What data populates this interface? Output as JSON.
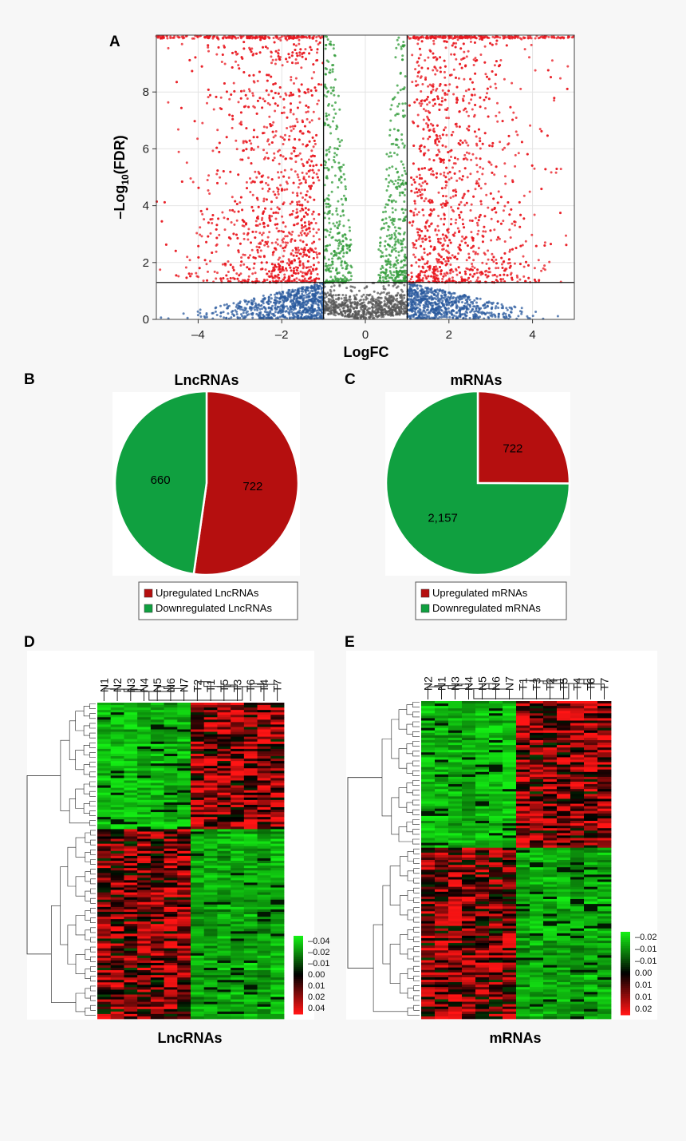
{
  "panels": {
    "a": "A",
    "b": "B",
    "c": "C",
    "d": "D",
    "e": "E"
  },
  "chart_data": [
    {
      "panel": "A",
      "type": "scatter",
      "xlabel": "LogFC",
      "ylabel_main": "–Log",
      "ylabel_sub": "10",
      "ylabel_tail": "(FDR)",
      "xlim": [
        -5,
        5
      ],
      "ylim": [
        0,
        10
      ],
      "xticks": [
        {
          "value": -4,
          "label": "–4"
        },
        {
          "value": -2,
          "label": "–2"
        },
        {
          "value": 0,
          "label": "0"
        },
        {
          "value": 2,
          "label": "2"
        },
        {
          "value": 4,
          "label": "4"
        }
      ],
      "yticks": [
        {
          "value": 0,
          "label": "0"
        },
        {
          "value": 2,
          "label": "2"
        },
        {
          "value": 4,
          "label": "4"
        },
        {
          "value": 6,
          "label": "6"
        },
        {
          "value": 8,
          "label": "8"
        }
      ],
      "thresholds": {
        "logfc": [
          -1,
          1
        ],
        "neg_log10_fdr": 1.3
      },
      "grid": true,
      "colors": {
        "significant": "#e8141c",
        "fdr_only": "#2e9a36",
        "fc_only": "#2a5a9e",
        "not_significant": "#555555"
      }
    },
    {
      "panel": "B",
      "type": "pie",
      "title": "LncRNAs",
      "slices": [
        {
          "name": "Upregulated LncRNAs",
          "value": 722,
          "label": "722",
          "color": "#b50f0f"
        },
        {
          "name": "Downregulated LncRNAs",
          "value": 660,
          "label": "660",
          "color": "#10a040"
        }
      ]
    },
    {
      "panel": "C",
      "type": "pie",
      "title": "mRNAs",
      "slices": [
        {
          "name": "Upregulated mRNAs",
          "value": 722,
          "label": "722",
          "color": "#b50f0f"
        },
        {
          "name": "Downregulated mRNAs",
          "value": 2157,
          "label": "2,157",
          "color": "#10a040"
        }
      ]
    },
    {
      "panel": "D",
      "type": "heatmap",
      "title": "LncRNAs",
      "columns": [
        "N1",
        "N2",
        "N3",
        "N4",
        "N5",
        "N6",
        "N7",
        "T2",
        "T1",
        "T5",
        "T3",
        "T6",
        "T4",
        "T7"
      ],
      "normal_columns": 7,
      "upper_cluster_fraction": 0.4,
      "colorbar": [
        "–0.04",
        "–0.02",
        "–0.01",
        "0.00",
        "0.01",
        "0.02",
        "0.04"
      ],
      "colors": {
        "low": "#1aee1a",
        "mid": "#000000",
        "high": "#ff1a1a"
      }
    },
    {
      "panel": "E",
      "type": "heatmap",
      "title": "mRNAs",
      "columns": [
        "N2",
        "N1",
        "N3",
        "N4",
        "N5",
        "N6",
        "N7",
        "T1",
        "T3",
        "T2",
        "T5",
        "T4",
        "T6",
        "T7"
      ],
      "normal_columns": 7,
      "upper_cluster_fraction": 0.46,
      "colorbar": [
        "–0.02",
        "–0.01",
        "–0.01",
        "0.00",
        "0.01",
        "0.01",
        "0.02"
      ],
      "colors": {
        "low": "#1aee1a",
        "mid": "#000000",
        "high": "#ff1a1a"
      }
    }
  ]
}
